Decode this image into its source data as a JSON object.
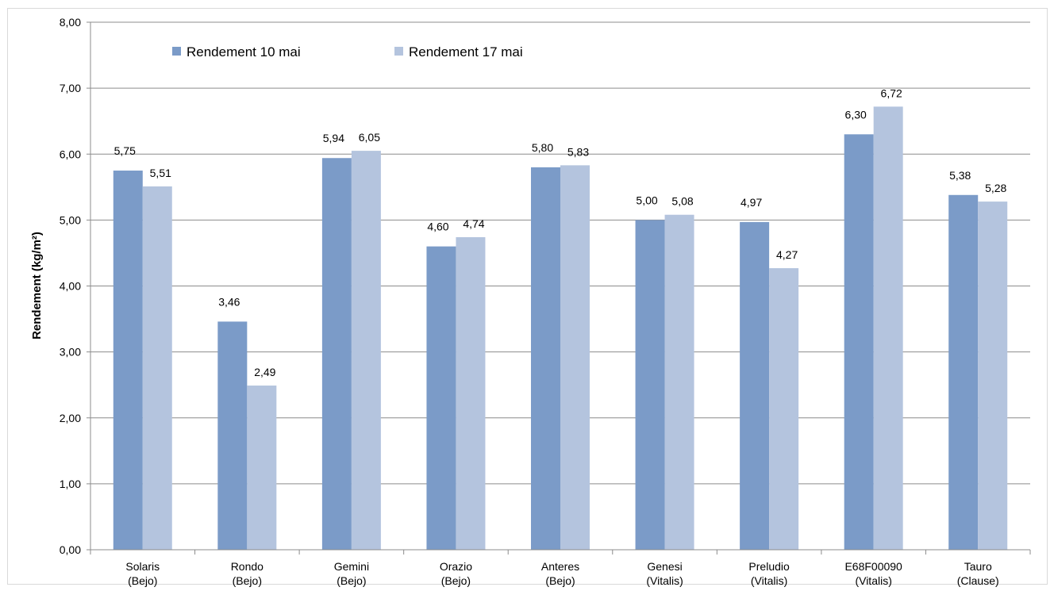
{
  "chart_data": {
    "type": "bar",
    "categories": [
      [
        "Solaris",
        "(Bejo)"
      ],
      [
        "Rondo",
        "(Bejo)"
      ],
      [
        "Gemini",
        "(Bejo)"
      ],
      [
        "Orazio",
        "(Bejo)"
      ],
      [
        "Anteres",
        "(Bejo)"
      ],
      [
        "Genesi",
        "(Vitalis)"
      ],
      [
        "Preludio",
        "(Vitalis)"
      ],
      [
        "E68F00090",
        "(Vitalis)"
      ],
      [
        "Tauro",
        "(Clause)"
      ]
    ],
    "series": [
      {
        "name": "Rendement 10 mai",
        "color": "#7b9bc8",
        "values": [
          5.75,
          3.46,
          5.94,
          4.6,
          5.8,
          5.0,
          4.97,
          6.3,
          5.38
        ],
        "labels": [
          "5,75",
          "3,46",
          "5,94",
          "4,60",
          "5,80",
          "5,00",
          "4,97",
          "6,30",
          "5,38"
        ]
      },
      {
        "name": "Rendement 17 mai",
        "color": "#b4c4de",
        "values": [
          5.51,
          2.49,
          6.05,
          4.74,
          5.83,
          5.08,
          4.27,
          6.72,
          5.28
        ],
        "labels": [
          "5,51",
          "2,49",
          "6,05",
          "4,74",
          "5,83",
          "5,08",
          "4,27",
          "6,72",
          "5,28"
        ]
      }
    ],
    "ylabel": "Rendement (kg/m²)",
    "ylim": [
      0,
      8
    ],
    "yticks": [
      "0,00",
      "1,00",
      "2,00",
      "3,00",
      "4,00",
      "5,00",
      "6,00",
      "7,00",
      "8,00"
    ],
    "grid": true,
    "legend_position": "top-left"
  }
}
